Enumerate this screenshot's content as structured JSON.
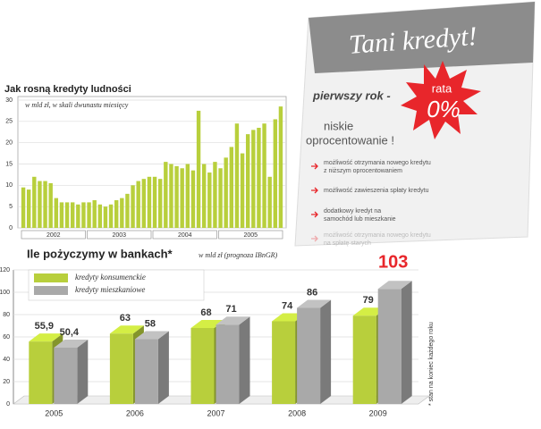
{
  "chart_data": [
    {
      "type": "bar",
      "title": "Jak rosną kredyty ludności",
      "subtitle": "w mld zł, w skali dwunastu miesięcy",
      "categories": [
        null,
        null,
        null,
        null,
        null,
        null,
        null,
        null,
        null,
        null,
        null,
        null,
        null,
        null,
        null,
        null,
        null,
        null,
        null,
        null,
        null,
        null,
        null,
        null,
        null,
        null,
        null,
        null,
        null,
        null,
        null,
        null,
        null,
        null,
        null,
        null,
        null,
        null,
        null,
        null,
        null,
        null,
        null,
        null,
        null,
        null,
        null,
        null
      ],
      "groups": [
        "2002",
        "2003",
        "2004",
        "2005"
      ],
      "values": [
        9.5,
        9,
        12,
        11,
        11,
        10.5,
        7,
        6,
        6,
        6,
        5.5,
        6,
        6,
        6.5,
        5.5,
        5,
        5.5,
        6.5,
        7,
        8,
        10,
        11,
        11.5,
        12,
        12,
        11.5,
        15.5,
        15,
        14.5,
        14,
        15,
        13.5,
        27.5,
        15,
        13,
        15.5,
        14,
        16.5,
        19,
        24.5,
        17.5,
        22,
        23,
        23.5,
        24.5,
        12,
        25.5,
        28.5
      ],
      "color": "#b8cf3c",
      "ylim": [
        0,
        30
      ],
      "yticks": [
        0,
        5,
        10,
        15,
        20,
        25,
        30
      ],
      "grid": true
    },
    {
      "type": "bar3d",
      "title": "Ile pożyczymy w bankach*",
      "subtitle": "w mld zł  (prognoza IBnGR)",
      "note": "* stan na koniec każdego roku",
      "categories": [
        "2005",
        "2006",
        "2007",
        "2008",
        "2009"
      ],
      "series": [
        {
          "name": "kredyty konsumenckie",
          "color": "#b8cf3c",
          "values": [
            55.9,
            63,
            68,
            74,
            79
          ],
          "value_labels": [
            "55,9",
            "63",
            "68",
            "74",
            "79"
          ]
        },
        {
          "name": "kredyty mieszkaniowe",
          "color": "#a9a9a9",
          "values": [
            50.4,
            58,
            71,
            86,
            103
          ],
          "value_labels": [
            "50,4",
            "58",
            "71",
            "86",
            "103"
          ]
        }
      ],
      "ylim": [
        0,
        120
      ],
      "yticks": [
        0,
        20,
        40,
        60,
        80,
        100,
        120
      ],
      "grid": true
    }
  ],
  "flyer": {
    "title": "Tani kredyt!",
    "line1": "pierwszy rok -",
    "badge_top": "rata",
    "badge_main": "0%",
    "line2": "niskie",
    "line3": "oprocentowanie !",
    "bullets": [
      "możliwość otrzymania nowego kredytu z niższym oprocentowaniem",
      "możliwość zawieszenia spłaty kredytu",
      "dodatkowy kredyt na samochód lub mieszkanie",
      "możliwość otrzymania nowego kredytu na spłatę starych"
    ]
  }
}
